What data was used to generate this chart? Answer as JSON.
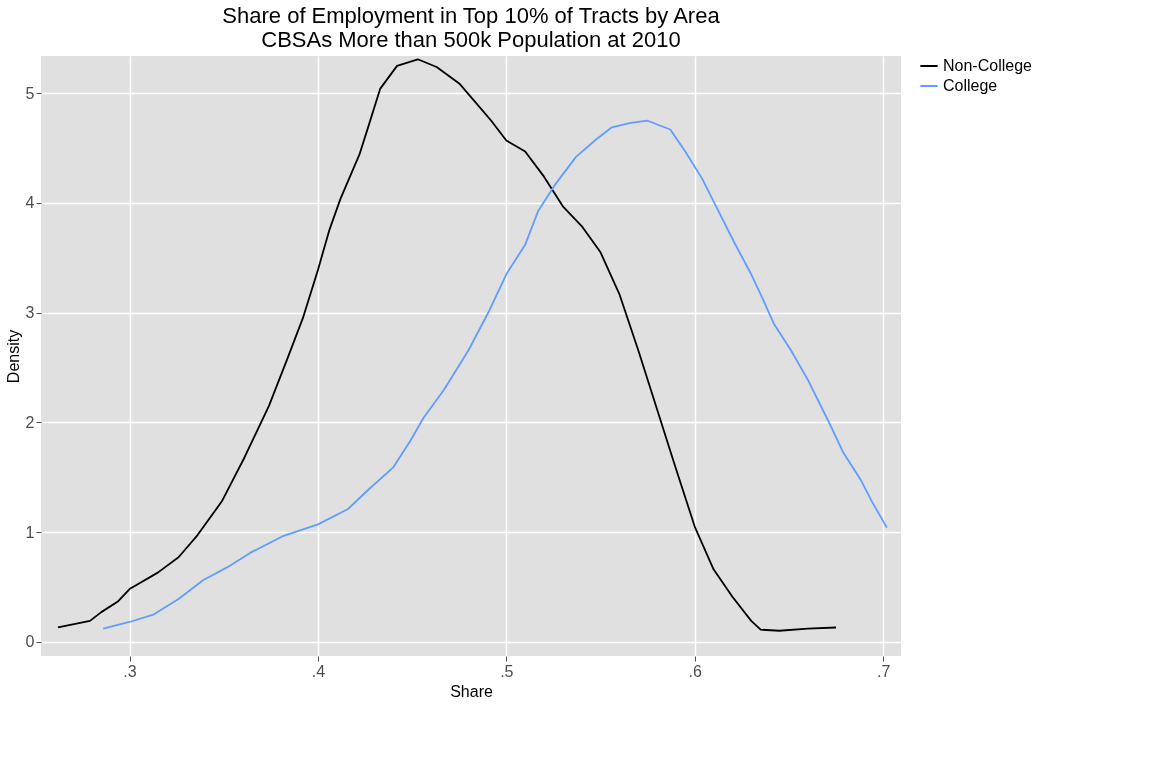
{
  "chart_data": {
    "type": "line",
    "title": "Share of Employment in Top 10% of Tracts by Area",
    "subtitle": "CBSAs More than 500k Population at 2010",
    "xlabel": "Share",
    "ylabel": "Density",
    "xlim": [
      0.253,
      0.7095
    ],
    "ylim": [
      -0.13,
      5.34
    ],
    "xticks": [
      {
        "value": 0.3,
        "label": ".3"
      },
      {
        "value": 0.4,
        "label": ".4"
      },
      {
        "value": 0.5,
        "label": ".5"
      },
      {
        "value": 0.6,
        "label": ".6"
      },
      {
        "value": 0.7,
        "label": ".7"
      }
    ],
    "yticks": [
      0,
      1,
      2,
      3,
      4,
      5
    ],
    "grid": true,
    "legend": "right",
    "marker": "none",
    "line_style": "solid",
    "series": [
      {
        "name": "Non-College",
        "color": "#000000",
        "x": [
          0.262,
          0.279,
          0.285,
          0.294,
          0.3,
          0.315,
          0.326,
          0.336,
          0.349,
          0.361,
          0.374,
          0.384,
          0.392,
          0.4,
          0.406,
          0.412,
          0.422,
          0.427,
          0.433,
          0.442,
          0.453,
          0.463,
          0.475,
          0.484,
          0.492,
          0.5,
          0.51,
          0.52,
          0.53,
          0.54,
          0.55,
          0.56,
          0.57,
          0.58,
          0.59,
          0.6,
          0.61,
          0.62,
          0.63,
          0.635,
          0.645,
          0.66,
          0.675
        ],
        "values": [
          0.13,
          0.19,
          0.27,
          0.37,
          0.48,
          0.63,
          0.77,
          0.97,
          1.28,
          1.68,
          2.15,
          2.59,
          2.95,
          3.39,
          3.75,
          4.04,
          4.44,
          4.71,
          5.04,
          5.25,
          5.31,
          5.24,
          5.09,
          4.91,
          4.75,
          4.57,
          4.47,
          4.24,
          3.97,
          3.79,
          3.55,
          3.17,
          2.66,
          2.12,
          1.58,
          1.05,
          0.66,
          0.41,
          0.19,
          0.11,
          0.1,
          0.12,
          0.13
        ]
      },
      {
        "name": "College",
        "color": "#619cff",
        "x": [
          0.286,
          0.3,
          0.313,
          0.326,
          0.339,
          0.352,
          0.364,
          0.381,
          0.4,
          0.416,
          0.427,
          0.44,
          0.449,
          0.456,
          0.467,
          0.48,
          0.491,
          0.5,
          0.51,
          0.517,
          0.526,
          0.537,
          0.547,
          0.556,
          0.566,
          0.575,
          0.587,
          0.595,
          0.604,
          0.611,
          0.621,
          0.63,
          0.636,
          0.642,
          0.651,
          0.66,
          0.671,
          0.679,
          0.688,
          0.694,
          0.702
        ],
        "values": [
          0.12,
          0.18,
          0.25,
          0.39,
          0.56,
          0.68,
          0.81,
          0.96,
          1.07,
          1.21,
          1.39,
          1.59,
          1.83,
          2.04,
          2.3,
          2.66,
          3.02,
          3.35,
          3.62,
          3.93,
          4.17,
          4.42,
          4.57,
          4.69,
          4.73,
          4.75,
          4.67,
          4.47,
          4.22,
          3.98,
          3.64,
          3.35,
          3.13,
          2.9,
          2.66,
          2.39,
          2.01,
          1.72,
          1.48,
          1.28,
          1.04
        ]
      }
    ]
  }
}
